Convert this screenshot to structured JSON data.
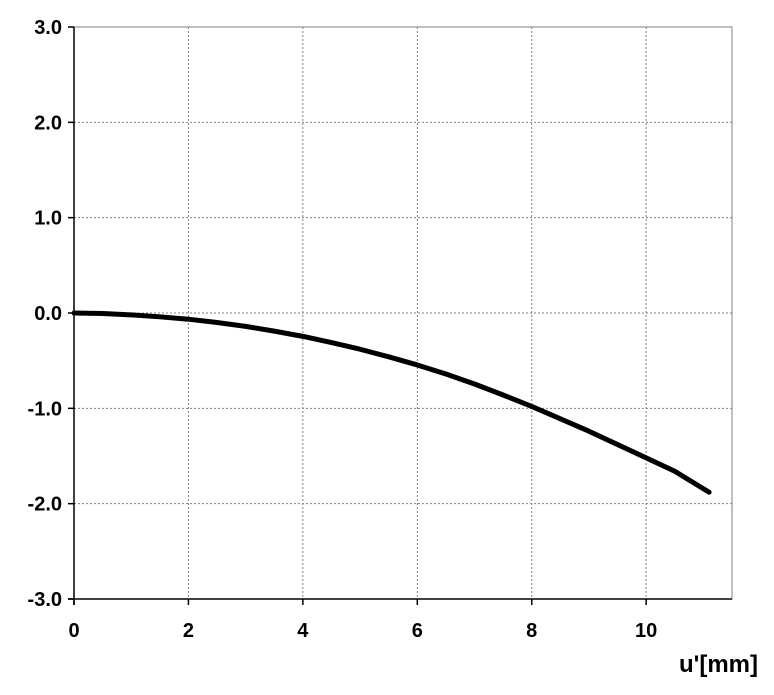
{
  "chart_data": {
    "type": "line",
    "title": "",
    "xlabel": "u'[mm]",
    "ylabel": "",
    "xlim": [
      0,
      11.5
    ],
    "ylim": [
      -3.0,
      3.0
    ],
    "x_ticks": [
      0,
      2,
      4,
      6,
      8,
      10
    ],
    "x_tick_labels": [
      "0",
      "2",
      "4",
      "6",
      "8",
      "10"
    ],
    "y_ticks": [
      -3.0,
      -2.0,
      -1.0,
      0.0,
      1.0,
      2.0,
      3.0
    ],
    "y_tick_labels": [
      "-3.0",
      "-2.0",
      "-1.0",
      "0.0",
      "1.0",
      "2.0",
      "3.0"
    ],
    "grid": true,
    "legend": "none",
    "series": [
      {
        "color": "#000000",
        "x": [
          0,
          0.5,
          1,
          1.5,
          2,
          2.5,
          3,
          3.5,
          4,
          4.5,
          5,
          5.5,
          6,
          6.5,
          7,
          7.5,
          8,
          8.5,
          9,
          9.5,
          10,
          10.5,
          11.1
        ],
        "y": [
          0.0,
          -0.005,
          -0.02,
          -0.04,
          -0.065,
          -0.1,
          -0.14,
          -0.19,
          -0.245,
          -0.31,
          -0.38,
          -0.46,
          -0.545,
          -0.64,
          -0.745,
          -0.86,
          -0.98,
          -1.11,
          -1.24,
          -1.38,
          -1.52,
          -1.66,
          -1.88
        ]
      }
    ]
  }
}
